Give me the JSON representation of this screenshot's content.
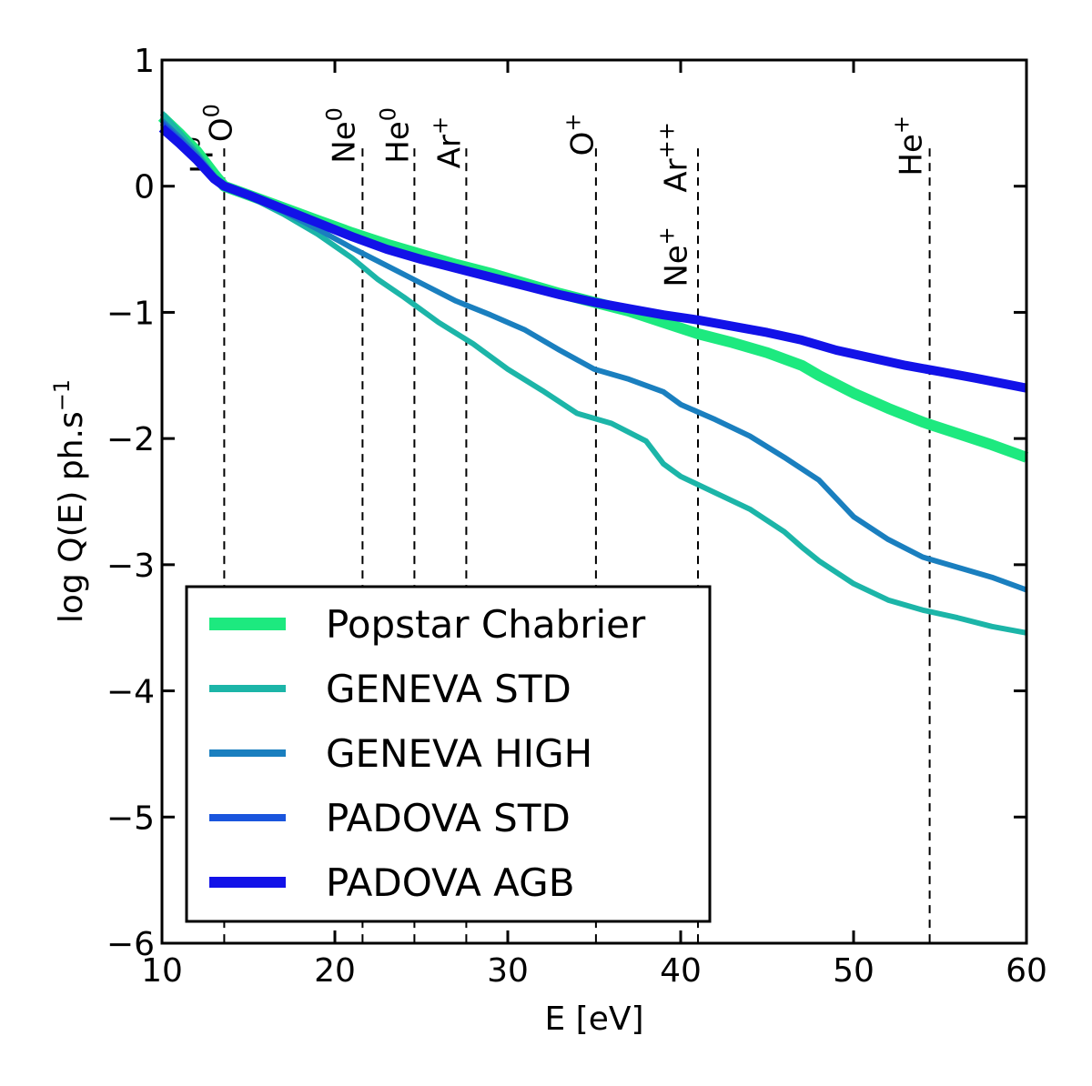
{
  "chart_data": {
    "type": "line",
    "title": "",
    "xlabel": "E [eV]",
    "ylabel": "log Q(E) ph.s",
    "ylabel_sup": "−1",
    "xlim": [
      10,
      60
    ],
    "ylim": [
      -6,
      1
    ],
    "xticks": [
      10,
      20,
      30,
      40,
      50,
      60
    ],
    "yticks": [
      1,
      0,
      -1,
      -2,
      -3,
      -4,
      -5,
      -6
    ],
    "xtick_labels": [
      "10",
      "20",
      "30",
      "40",
      "50",
      "60"
    ],
    "ytick_labels": [
      "1",
      "0",
      "−1",
      "−2",
      "−3",
      "−4",
      "−5",
      "−6"
    ],
    "legend_position": "lower-left",
    "series": [
      {
        "name": "Popstar Chabrier",
        "color": "#1de97f",
        "width": 12,
        "x": [
          10,
          11,
          12,
          13,
          13.6,
          15,
          17,
          19,
          21,
          23,
          25,
          27,
          29,
          31,
          33,
          35,
          37,
          39,
          41,
          43,
          45,
          47,
          48,
          50,
          52,
          54,
          56,
          58,
          60
        ],
        "y": [
          0.55,
          0.42,
          0.28,
          0.1,
          0.0,
          -0.07,
          -0.17,
          -0.27,
          -0.37,
          -0.46,
          -0.54,
          -0.62,
          -0.69,
          -0.77,
          -0.85,
          -0.92,
          -0.99,
          -1.08,
          -1.17,
          -1.24,
          -1.32,
          -1.42,
          -1.5,
          -1.64,
          -1.76,
          -1.87,
          -1.96,
          -2.05,
          -2.15
        ]
      },
      {
        "name": "GENEVA STD",
        "color": "#1cb5a8",
        "width": 6,
        "x": [
          10,
          11,
          12,
          13,
          13.6,
          15,
          17,
          19,
          21,
          22.5,
          24,
          26,
          28,
          30,
          32,
          34,
          36,
          38,
          39,
          40,
          42,
          44,
          46,
          47,
          48,
          50,
          52,
          54,
          56,
          58,
          60
        ],
        "y": [
          0.58,
          0.43,
          0.27,
          0.09,
          0.0,
          -0.08,
          -0.22,
          -0.38,
          -0.57,
          -0.74,
          -0.88,
          -1.08,
          -1.25,
          -1.45,
          -1.62,
          -1.8,
          -1.88,
          -2.02,
          -2.2,
          -2.3,
          -2.43,
          -2.56,
          -2.74,
          -2.86,
          -2.97,
          -3.15,
          -3.28,
          -3.36,
          -3.42,
          -3.49,
          -3.54
        ]
      },
      {
        "name": "GENEVA HIGH",
        "color": "#1a7fbf",
        "width": 6,
        "x": [
          10,
          11,
          12,
          13,
          13.6,
          15,
          17,
          19,
          21,
          23,
          25,
          27,
          29,
          31,
          33,
          35,
          37,
          39,
          40,
          42,
          44,
          46,
          48,
          50,
          52,
          54,
          56,
          58,
          60
        ],
        "y": [
          0.52,
          0.39,
          0.25,
          0.08,
          0.0,
          -0.08,
          -0.2,
          -0.34,
          -0.49,
          -0.63,
          -0.77,
          -0.91,
          -1.02,
          -1.14,
          -1.3,
          -1.45,
          -1.53,
          -1.63,
          -1.73,
          -1.85,
          -1.98,
          -2.15,
          -2.33,
          -2.62,
          -2.8,
          -2.94,
          -3.02,
          -3.1,
          -3.2
        ]
      },
      {
        "name": "PADOVA STD",
        "color": "#1a55dd",
        "width": 6,
        "x": [
          10,
          11,
          12,
          13,
          13.6,
          15,
          17,
          19,
          21,
          23,
          25,
          27,
          29,
          31,
          33,
          35,
          37,
          39,
          41,
          43,
          45,
          47,
          49,
          51,
          53,
          55,
          57,
          60
        ],
        "y": [
          0.5,
          0.37,
          0.23,
          0.07,
          0.0,
          -0.08,
          -0.19,
          -0.3,
          -0.41,
          -0.51,
          -0.58,
          -0.65,
          -0.72,
          -0.79,
          -0.86,
          -0.92,
          -0.97,
          -1.02,
          -1.07,
          -1.11,
          -1.16,
          -1.22,
          -1.3,
          -1.36,
          -1.42,
          -1.47,
          -1.51,
          -1.6
        ]
      },
      {
        "name": "PADOVA AGB",
        "color": "#1212e8",
        "width": 10,
        "x": [
          10,
          11,
          12,
          13,
          13.6,
          15,
          17,
          19,
          21,
          23,
          25,
          27,
          29,
          31,
          33,
          35,
          37,
          39,
          41,
          43,
          45,
          47,
          49,
          51,
          53,
          55,
          57,
          60
        ],
        "y": [
          0.46,
          0.34,
          0.21,
          0.06,
          0.0,
          -0.07,
          -0.18,
          -0.29,
          -0.4,
          -0.5,
          -0.58,
          -0.65,
          -0.72,
          -0.79,
          -0.86,
          -0.92,
          -0.97,
          -1.02,
          -1.06,
          -1.11,
          -1.16,
          -1.22,
          -1.3,
          -1.36,
          -1.42,
          -1.47,
          -1.52,
          -1.6
        ]
      }
    ],
    "vlines": [
      {
        "x": 13.6,
        "label": "H",
        "sup": "0",
        "lx": 12.3,
        "ly": 0.1
      },
      {
        "x": 13.6,
        "label": "O",
        "sup": "0",
        "lx": 13.4,
        "ly": 0.35
      },
      {
        "x": 21.6,
        "label": "Ne",
        "sup": "0",
        "lx": 20.5,
        "ly": 0.18
      },
      {
        "x": 24.6,
        "label": "He",
        "sup": "0",
        "lx": 23.6,
        "ly": 0.18
      },
      {
        "x": 27.6,
        "label": "Ar",
        "sup": "+",
        "lx": 26.6,
        "ly": 0.14
      },
      {
        "x": 35.1,
        "label": "O",
        "sup": "+",
        "lx": 34.3,
        "ly": 0.24
      },
      {
        "x": 41.0,
        "label": "Ne",
        "sup": "+",
        "lx": 39.7,
        "ly": -0.8
      },
      {
        "x": 41.0,
        "label": "Ar",
        "sup": "++",
        "lx": 39.7,
        "ly": -0.05
      },
      {
        "x": 54.4,
        "label": "He",
        "sup": "+",
        "lx": 53.3,
        "ly": 0.08
      }
    ]
  }
}
